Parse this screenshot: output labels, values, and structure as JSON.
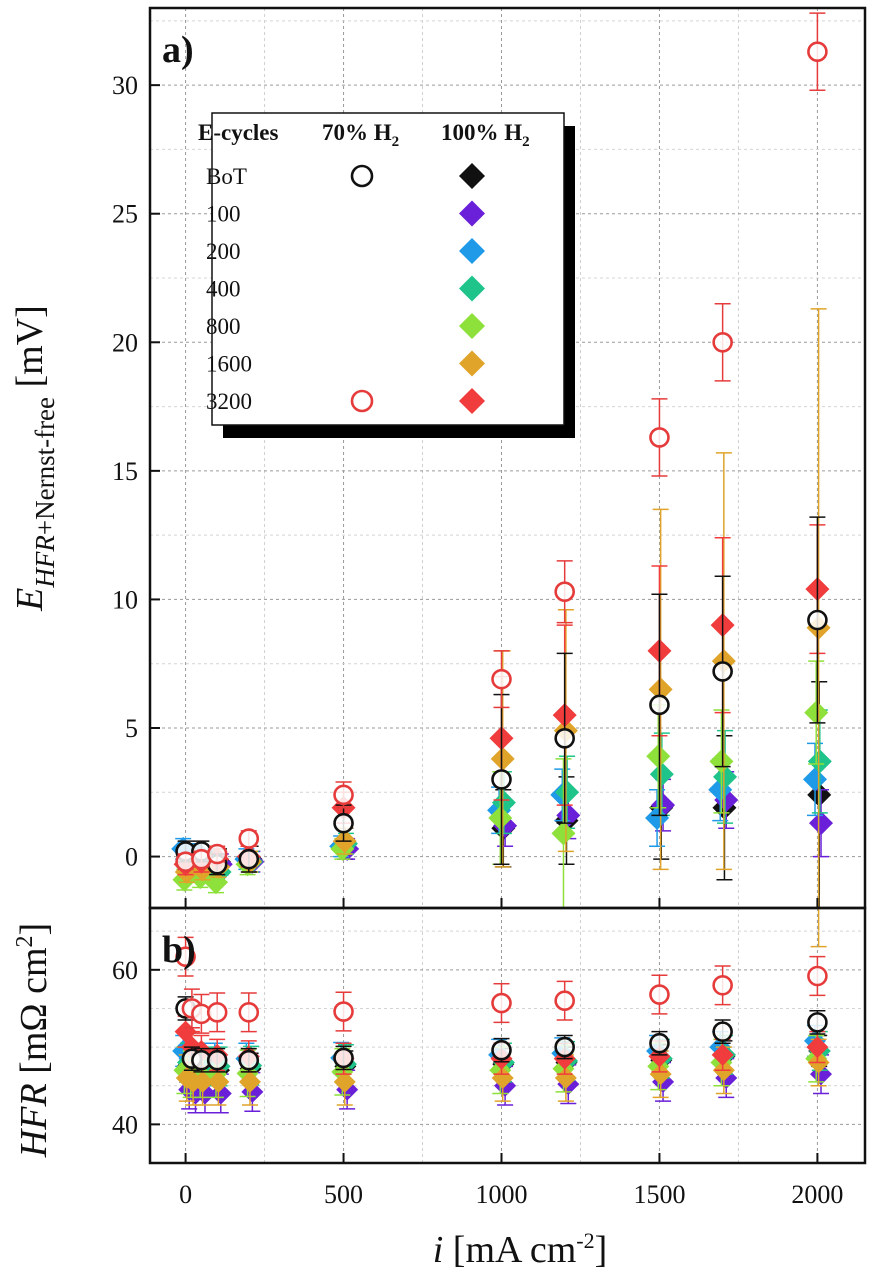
{
  "chart_data": [
    {
      "type": "scatter",
      "panel_label": "a)",
      "ylabel_main": "E",
      "ylabel_sub_italic": "HFR",
      "ylabel_sub_rest": "+Nernst-free",
      "ylabel_unit": " [mV]",
      "xlim": [
        -100,
        2100
      ],
      "ylim": [
        -2,
        33
      ],
      "yticks": [
        0,
        5,
        10,
        15,
        20,
        25,
        30
      ],
      "x": [
        0,
        50,
        100,
        200,
        500,
        1000,
        1200,
        1500,
        1700,
        2000
      ],
      "series": [
        {
          "name": "BoT 70% H2",
          "marker": "open-circle",
          "color": "#111111",
          "values": [
            0.2,
            0.2,
            -0.3,
            -0.1,
            1.3,
            3.0,
            4.6,
            5.9,
            7.2,
            9.2
          ],
          "err": [
            0.4,
            0.4,
            0.4,
            0.5,
            0.7,
            3.3,
            3.3,
            4.3,
            3.7,
            4.0
          ]
        },
        {
          "name": "3200 70% H2",
          "marker": "open-circle",
          "color": "#e63b3b",
          "values": [
            -0.2,
            -0.1,
            0.1,
            0.7,
            2.4,
            6.9,
            10.3,
            16.3,
            20.0,
            31.3
          ],
          "err": [
            0.3,
            0.3,
            0.3,
            0.3,
            0.5,
            1.1,
            1.2,
            1.5,
            1.5,
            1.5
          ]
        },
        {
          "name": "BoT 100% H2",
          "marker": "diamond",
          "color": "#111111",
          "values": [
            -0.3,
            -0.4,
            -0.2,
            -0.1,
            0.5,
            1.1,
            1.4,
            1.9,
            1.9,
            2.4
          ],
          "err": [
            0.5,
            0.5,
            0.5,
            0.5,
            0.6,
            1.5,
            1.7,
            2.0,
            2.8,
            4.4
          ]
        },
        {
          "name": "100 100% H2",
          "marker": "diamond",
          "color": "#6a1fd8",
          "values": [
            -0.1,
            -0.2,
            -0.3,
            -0.2,
            0.3,
            1.2,
            1.6,
            2.0,
            2.2,
            1.3
          ],
          "err": [
            0.4,
            0.4,
            0.4,
            0.4,
            0.4,
            0.8,
            0.9,
            1.0,
            1.1,
            1.3
          ]
        },
        {
          "name": "200 100% H2",
          "marker": "diamond",
          "color": "#1f9ae8",
          "values": [
            0.3,
            0.1,
            -0.1,
            -0.1,
            0.4,
            1.8,
            2.4,
            1.5,
            2.6,
            3.0
          ],
          "err": [
            0.4,
            0.4,
            0.4,
            0.4,
            0.4,
            0.9,
            1.0,
            1.1,
            1.2,
            1.4
          ]
        },
        {
          "name": "400 100% H2",
          "marker": "diamond",
          "color": "#1fc48a",
          "values": [
            -0.4,
            -0.5,
            -0.6,
            -0.2,
            0.5,
            2.1,
            2.5,
            3.2,
            3.1,
            3.7
          ],
          "err": [
            0.4,
            0.4,
            0.4,
            0.4,
            0.4,
            1.2,
            1.4,
            1.6,
            1.8,
            2.0
          ]
        },
        {
          "name": "800 100% H2",
          "marker": "diamond",
          "color": "#8ee03a",
          "values": [
            -0.9,
            -0.8,
            -1.0,
            -0.3,
            0.3,
            1.5,
            0.9,
            3.9,
            3.7,
            5.6
          ],
          "err": [
            0.4,
            0.4,
            0.4,
            0.4,
            0.4,
            1.8,
            2.9,
            2.0,
            2.0,
            2.0
          ]
        },
        {
          "name": "1600 100% H2",
          "marker": "diamond",
          "color": "#e0a42a",
          "values": [
            -0.6,
            -0.5,
            -0.4,
            -0.2,
            0.6,
            3.8,
            4.9,
            6.5,
            7.6,
            8.9
          ],
          "err": [
            0.4,
            0.4,
            0.4,
            0.4,
            0.5,
            4.2,
            4.7,
            7.0,
            8.1,
            12.4
          ]
        },
        {
          "name": "3200 100% H2",
          "marker": "diamond",
          "color": "#f03c3c",
          "values": [
            -0.3,
            -0.2,
            -0.1,
            0.0,
            1.9,
            4.6,
            5.5,
            8.0,
            9.0,
            10.4
          ],
          "err": [
            0.4,
            0.4,
            0.4,
            0.4,
            0.6,
            2.4,
            3.5,
            3.3,
            3.4,
            2.5
          ]
        }
      ]
    },
    {
      "type": "scatter",
      "panel_label": "b)",
      "ylabel_main": "HFR",
      "ylabel_unit": " [mΩ cm",
      "ylabel_sup": "2",
      "ylabel_close": "]",
      "xlabel_main": "i",
      "xlabel_unit": " [mA cm",
      "xlabel_sup": "-2",
      "xlabel_close": "]",
      "xlim": [
        -100,
        2100
      ],
      "ylim": [
        35,
        68
      ],
      "xticks": [
        0,
        500,
        1000,
        1500,
        2000
      ],
      "yticks": [
        40,
        60
      ],
      "x": [
        0,
        20,
        50,
        100,
        200,
        500,
        1000,
        1200,
        1500,
        1700,
        2000
      ],
      "series": [
        {
          "name": "BoT 70% H2",
          "marker": "open-circle",
          "color": "#111111",
          "values": [
            55.0,
            48.5,
            48.3,
            48.3,
            48.3,
            48.6,
            49.6,
            50.0,
            50.5,
            52.0,
            53.2
          ],
          "err": [
            1.5,
            1.5,
            1.5,
            1.5,
            1.5,
            1.5,
            1.5,
            1.5,
            1.5,
            1.5,
            1.5
          ]
        },
        {
          "name": "3200 70% H2",
          "marker": "open-circle",
          "color": "#e63b3b",
          "values": [
            61.7,
            55.0,
            54.3,
            54.5,
            54.5,
            54.6,
            55.7,
            56.0,
            56.8,
            58.0,
            59.2
          ],
          "err": [
            2.5,
            2.5,
            2.5,
            2.5,
            2.5,
            2.5,
            2.5,
            2.5,
            2.5,
            2.5,
            2.5
          ]
        },
        {
          "name": "BoT 100% H2",
          "marker": "diamond",
          "color": "#111111",
          "values": [
            47.5,
            47.0,
            47.0,
            47.0,
            47.2,
            47.5,
            47.8,
            48.0,
            48.3,
            48.8,
            49.5
          ],
          "err": [
            2.0,
            2.0,
            2.0,
            2.0,
            2.0,
            2.0,
            2.0,
            2.0,
            2.0,
            2.0,
            2.0
          ]
        },
        {
          "name": "100 100% H2",
          "marker": "diamond",
          "color": "#6a1fd8",
          "values": [
            44.5,
            44.0,
            44.0,
            44.0,
            44.2,
            44.5,
            45.0,
            45.2,
            45.5,
            46.0,
            46.5
          ],
          "err": [
            2.5,
            2.5,
            2.5,
            2.5,
            2.5,
            2.5,
            2.5,
            2.5,
            2.5,
            2.5,
            2.5
          ]
        },
        {
          "name": "200 100% H2",
          "marker": "diamond",
          "color": "#1f9ae8",
          "values": [
            49.5,
            48.5,
            48.5,
            48.5,
            48.5,
            48.6,
            49.0,
            49.2,
            49.5,
            50.0,
            50.8
          ],
          "err": [
            2.0,
            2.0,
            2.0,
            2.0,
            2.0,
            2.0,
            2.0,
            2.0,
            2.0,
            2.0,
            2.0
          ]
        },
        {
          "name": "400 100% H2",
          "marker": "diamond",
          "color": "#1fc48a",
          "values": [
            48.0,
            47.5,
            47.5,
            47.5,
            47.6,
            47.8,
            48.0,
            48.2,
            48.5,
            49.0,
            49.5
          ],
          "err": [
            2.5,
            2.5,
            2.5,
            2.5,
            2.5,
            2.5,
            2.5,
            2.5,
            2.5,
            2.5,
            2.5
          ]
        },
        {
          "name": "800 100% H2",
          "marker": "diamond",
          "color": "#8ee03a",
          "values": [
            47.0,
            46.5,
            46.5,
            46.5,
            46.6,
            46.8,
            47.0,
            47.2,
            47.5,
            48.0,
            48.5
          ],
          "err": [
            3.0,
            3.0,
            3.0,
            3.0,
            3.0,
            3.0,
            3.0,
            3.0,
            3.0,
            3.0,
            3.0
          ]
        },
        {
          "name": "1600 100% H2",
          "marker": "diamond",
          "color": "#e0a42a",
          "values": [
            46.0,
            45.5,
            45.5,
            45.5,
            45.5,
            45.5,
            46.0,
            46.0,
            46.5,
            47.0,
            48.0
          ],
          "err": [
            3.0,
            3.0,
            3.0,
            3.0,
            3.0,
            3.0,
            3.0,
            3.0,
            3.0,
            3.0,
            3.0
          ]
        },
        {
          "name": "3200 100% H2",
          "marker": "diamond",
          "color": "#f03c3c",
          "values": [
            52.0,
            50.0,
            49.5,
            49.0,
            48.8,
            48.5,
            48.5,
            48.5,
            48.8,
            49.0,
            50.0
          ],
          "err": [
            2.0,
            2.0,
            2.0,
            2.0,
            2.0,
            2.0,
            2.0,
            2.0,
            2.0,
            2.0,
            2.0
          ]
        }
      ]
    }
  ],
  "legend": {
    "header_col1": "E-cycles",
    "header_col2_main": "70% H",
    "header_col2_sub": "2",
    "header_col3_main": "100% H",
    "header_col3_sub": "2",
    "rows": [
      {
        "label": "BoT",
        "open_color": "#111111",
        "fill_color": "#111111"
      },
      {
        "label": "100",
        "open_color": "",
        "fill_color": "#6a1fd8"
      },
      {
        "label": "200",
        "open_color": "",
        "fill_color": "#1f9ae8"
      },
      {
        "label": "400",
        "open_color": "",
        "fill_color": "#1fc48a"
      },
      {
        "label": "800",
        "open_color": "",
        "fill_color": "#8ee03a"
      },
      {
        "label": "1600",
        "open_color": "",
        "fill_color": "#e0a42a"
      },
      {
        "label": "3200",
        "open_color": "#e63b3b",
        "fill_color": "#f03c3c"
      }
    ]
  }
}
